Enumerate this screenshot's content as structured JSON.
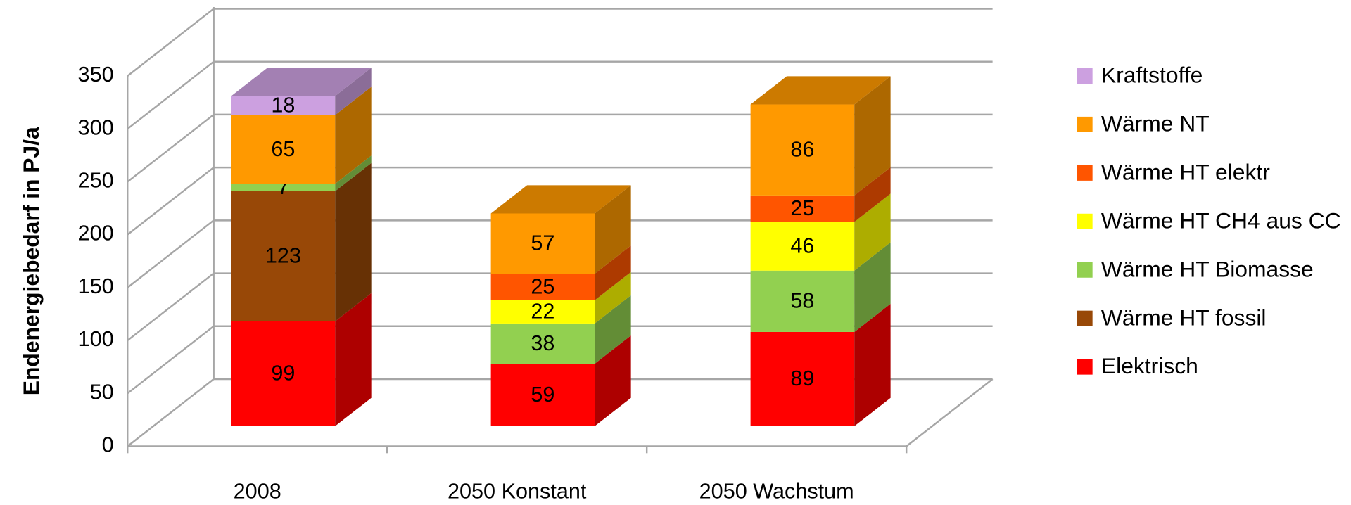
{
  "chart_data": {
    "type": "bar3d_stacked",
    "y_label": "Endenergiebedarf in PJ/a",
    "categories": [
      "2008",
      "2050 Konstant",
      "2050 Wachstum"
    ],
    "series": [
      {
        "name": "Elektrisch",
        "color": "#ff0000",
        "values": [
          99,
          59,
          89
        ]
      },
      {
        "name": "Wärme HT fossil",
        "color": "#984807",
        "values": [
          123,
          null,
          null
        ]
      },
      {
        "name": "Wärme HT Biomasse",
        "color": "#92d050",
        "values": [
          7,
          38,
          58
        ]
      },
      {
        "name": "Wärme HT CH4 aus CC",
        "color": "#ffff00",
        "values": [
          null,
          22,
          46
        ]
      },
      {
        "name": "Wärme HT elektr",
        "color": "#ff5500",
        "values": [
          null,
          25,
          25
        ]
      },
      {
        "name": "Wärme NT",
        "color": "#ff9900",
        "values": [
          65,
          57,
          86
        ]
      },
      {
        "name": "Kraftstoffe",
        "color": "#cca0e0",
        "values": [
          18,
          null,
          null
        ]
      }
    ],
    "ylim": [
      0,
      350
    ],
    "yticks": [
      0,
      50,
      100,
      150,
      200,
      250,
      300,
      350
    ],
    "grid": true,
    "legend": "right"
  }
}
